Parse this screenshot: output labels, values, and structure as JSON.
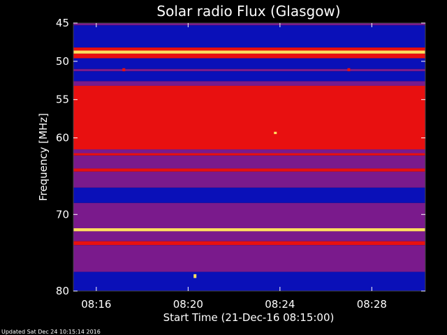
{
  "chart_data": {
    "type": "heatmap",
    "title": "Solar radio Flux (Glasgow)",
    "xlabel": "Start Time (21-Dec-16 08:15:00)",
    "ylabel": "Frequency [MHz]",
    "footer": "Updated Sat Dec 24 10:15:14 2016",
    "x_range_minutes": [
      8.25,
      8.5
    ],
    "x_axis_start": "08:15:00",
    "x_axis_end": "08:30:20",
    "x_ticks": [
      "08:16",
      "08:20",
      "08:24",
      "08:28"
    ],
    "y_range": [
      45,
      80
    ],
    "y_reversed": true,
    "y_ticks": [
      45,
      50,
      55,
      60,
      70,
      80
    ],
    "colors": {
      "background": "#000000",
      "low": "#0a10b8",
      "mid": "#7a1a8c",
      "high": "#e81010",
      "peak": "#ffe060"
    },
    "bands": [
      {
        "f0": 45.0,
        "f1": 45.3,
        "level": "mid"
      },
      {
        "f0": 45.3,
        "f1": 48.2,
        "level": "low"
      },
      {
        "f0": 48.2,
        "f1": 48.6,
        "level": "high"
      },
      {
        "f0": 48.6,
        "f1": 49.0,
        "level": "peak"
      },
      {
        "f0": 49.0,
        "f1": 49.6,
        "level": "high"
      },
      {
        "f0": 49.6,
        "f1": 51.0,
        "level": "low"
      },
      {
        "f0": 51.0,
        "f1": 51.3,
        "level": "mid"
      },
      {
        "f0": 51.3,
        "f1": 52.6,
        "level": "low"
      },
      {
        "f0": 52.6,
        "f1": 53.2,
        "level": "mid"
      },
      {
        "f0": 53.2,
        "f1": 61.5,
        "level": "high"
      },
      {
        "f0": 61.5,
        "f1": 62.0,
        "level": "mid"
      },
      {
        "f0": 62.0,
        "f1": 62.3,
        "level": "high"
      },
      {
        "f0": 62.3,
        "f1": 64.0,
        "level": "mid"
      },
      {
        "f0": 64.0,
        "f1": 64.4,
        "level": "high"
      },
      {
        "f0": 64.4,
        "f1": 66.5,
        "level": "mid"
      },
      {
        "f0": 66.5,
        "f1": 68.5,
        "level": "low"
      },
      {
        "f0": 68.5,
        "f1": 71.8,
        "level": "mid"
      },
      {
        "f0": 71.8,
        "f1": 72.2,
        "level": "peak"
      },
      {
        "f0": 72.2,
        "f1": 73.5,
        "level": "mid"
      },
      {
        "f0": 73.5,
        "f1": 74.0,
        "level": "high"
      },
      {
        "f0": 74.0,
        "f1": 77.5,
        "level": "mid"
      },
      {
        "f0": 77.5,
        "f1": 80.0,
        "level": "low"
      }
    ],
    "bursts": [
      {
        "t": 23.8,
        "f0": 53.5,
        "f1": 60.0,
        "level": "high"
      },
      {
        "t": 23.8,
        "f0": 59.2,
        "f1": 59.5,
        "level": "peak"
      },
      {
        "t": 17.2,
        "f0": 50.9,
        "f1": 51.3,
        "level": "high"
      },
      {
        "t": 27.0,
        "f0": 50.9,
        "f1": 51.3,
        "level": "high"
      },
      {
        "t": 20.3,
        "f0": 77.8,
        "f1": 78.3,
        "level": "peak"
      }
    ]
  }
}
